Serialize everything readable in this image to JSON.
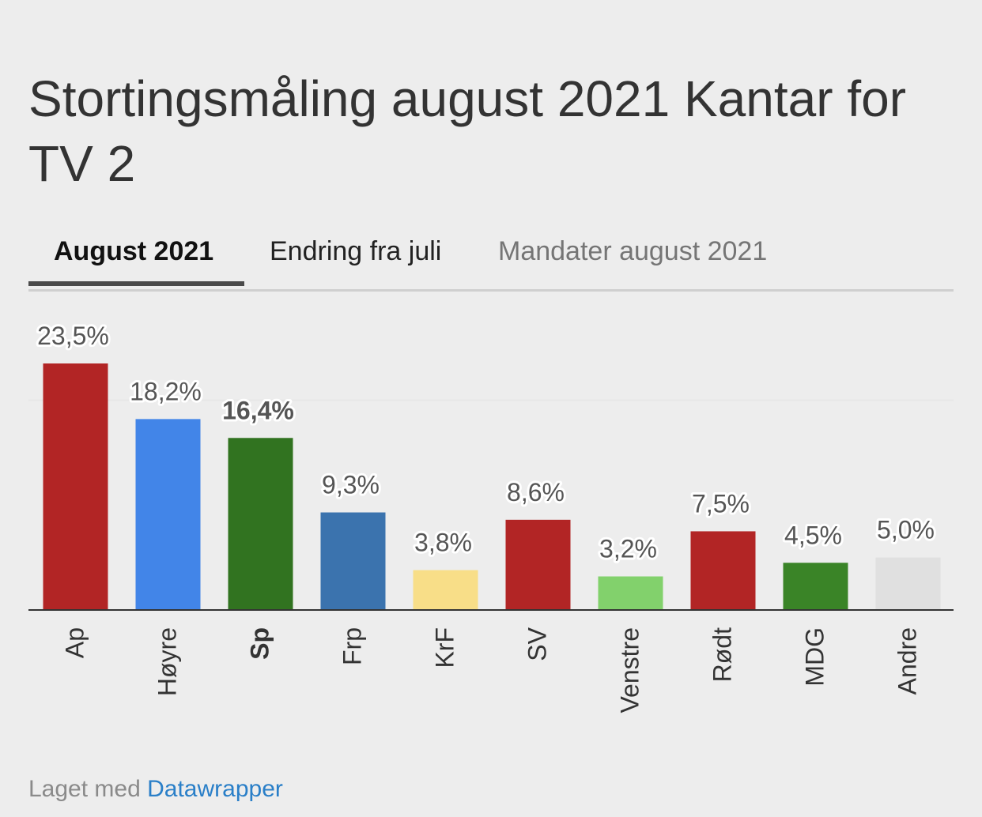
{
  "title": "Stortingsmåling august 2021 Kantar for TV 2",
  "tabs": [
    {
      "label": "August 2021",
      "active": true
    },
    {
      "label": "Endring fra juli",
      "active": false
    },
    {
      "label": "Mandater august 2021",
      "active": false
    }
  ],
  "footer": {
    "prefix": "Laget med",
    "link": "Datawrapper"
  },
  "chart_data": {
    "type": "bar",
    "categories": [
      "Ap",
      "Høyre",
      "Sp",
      "Frp",
      "KrF",
      "SV",
      "Venstre",
      "Rødt",
      "MDG",
      "Andre"
    ],
    "values": [
      23.5,
      18.2,
      16.4,
      9.3,
      3.8,
      8.6,
      3.2,
      7.5,
      4.5,
      5.0
    ],
    "value_labels": [
      "23,5%",
      "18,2%",
      "16,4%",
      "9,3%",
      "3,8%",
      "8,6%",
      "3,2%",
      "7,5%",
      "4,5%",
      "5,0%"
    ],
    "colors": [
      "#b22525",
      "#4285e8",
      "#317320",
      "#3b73ae",
      "#f8de88",
      "#b22525",
      "#82d16c",
      "#b22525",
      "#3a8427",
      "#e0e0e0"
    ],
    "highlighted": [
      "Sp"
    ],
    "ylim": [
      0,
      23.5
    ],
    "gridlines": [
      20
    ],
    "grid": true,
    "xlabel": "",
    "ylabel": ""
  }
}
